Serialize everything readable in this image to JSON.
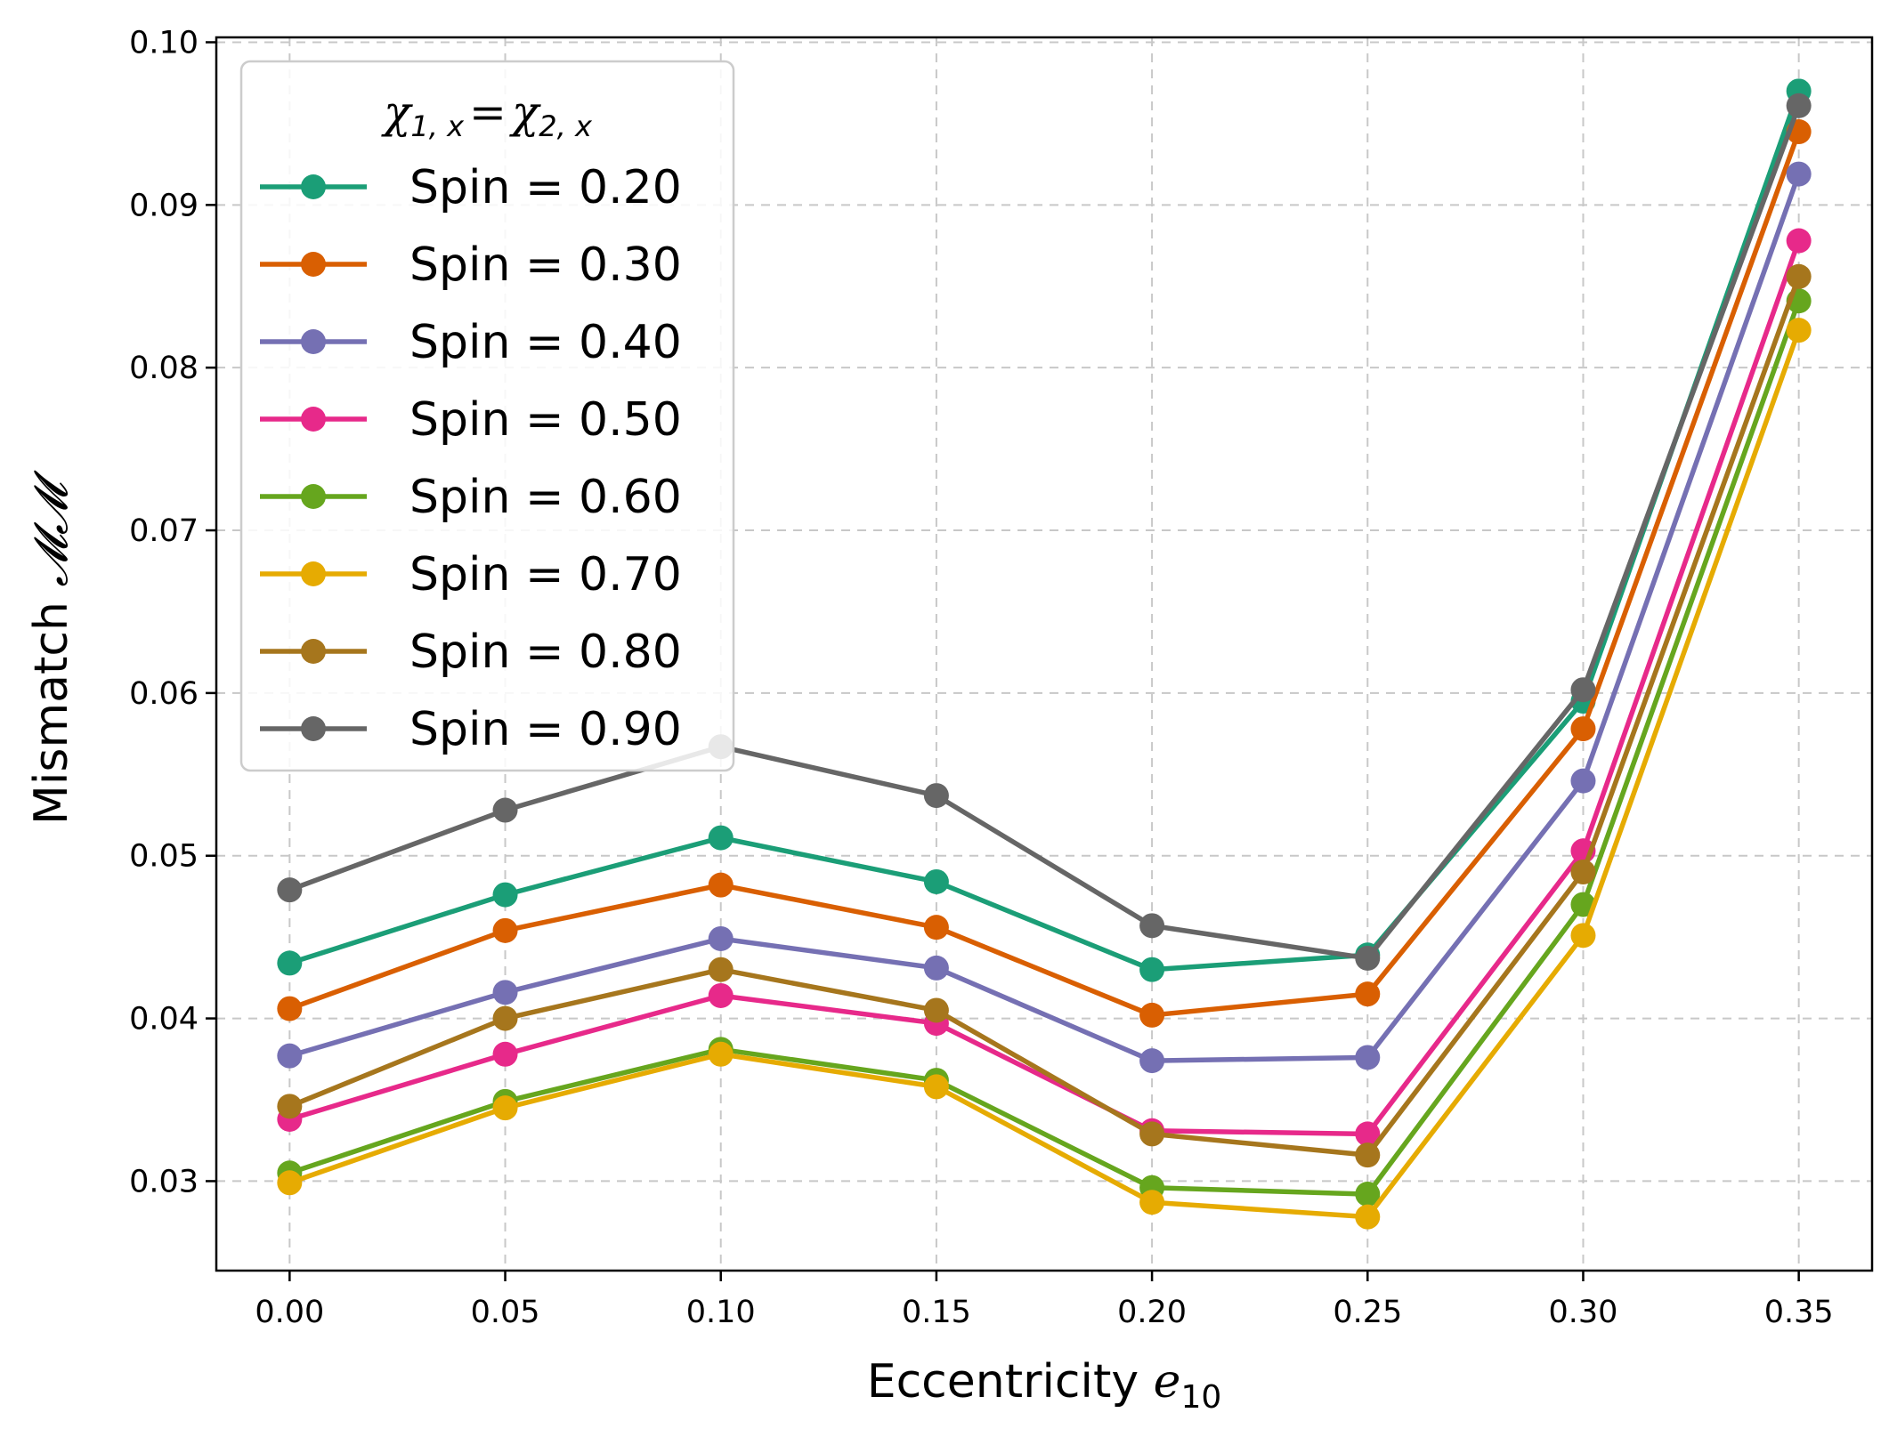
{
  "chart_data": {
    "type": "line",
    "xlabel_text": "Eccentricity",
    "xlabel_math_base": "e",
    "xlabel_math_sub": "10",
    "ylabel_text": "Mismatch",
    "ylabel_math": "𝓜𝓜",
    "legend_title_left_base": "χ",
    "legend_title_left_sub": "1, x",
    "legend_title_eq": "=",
    "legend_title_right_base": "χ",
    "legend_title_right_sub": "2, x",
    "legend_position": "upper-left",
    "grid": true,
    "xlim": [
      -0.017,
      0.367
    ],
    "ylim": [
      0.0245,
      0.1003
    ],
    "x": [
      0.0,
      0.05,
      0.1,
      0.15,
      0.2,
      0.25,
      0.3,
      0.35
    ],
    "x_ticks": [
      0.0,
      0.05,
      0.1,
      0.15,
      0.2,
      0.25,
      0.3,
      0.35
    ],
    "x_tick_labels": [
      "0.00",
      "0.05",
      "0.10",
      "0.15",
      "0.20",
      "0.25",
      "0.30",
      "0.35"
    ],
    "y_ticks": [
      0.03,
      0.04,
      0.05,
      0.06,
      0.07,
      0.08,
      0.09,
      0.1
    ],
    "y_tick_labels": [
      "0.03",
      "0.04",
      "0.05",
      "0.06",
      "0.07",
      "0.08",
      "0.09",
      "0.10"
    ],
    "series": [
      {
        "name": "Spin = 0.20",
        "color": "#1b9e77",
        "values": [
          0.0434,
          0.0476,
          0.0511,
          0.0484,
          0.043,
          0.0439,
          0.0595,
          0.097
        ]
      },
      {
        "name": "Spin = 0.30",
        "color": "#d95f02",
        "values": [
          0.0406,
          0.0454,
          0.0482,
          0.0456,
          0.0402,
          0.0415,
          0.0578,
          0.0945
        ]
      },
      {
        "name": "Spin = 0.40",
        "color": "#7570b3",
        "values": [
          0.0377,
          0.0416,
          0.0449,
          0.0431,
          0.0374,
          0.0376,
          0.0546,
          0.0919
        ]
      },
      {
        "name": "Spin = 0.50",
        "color": "#e7298a",
        "values": [
          0.0338,
          0.0378,
          0.0414,
          0.0397,
          0.0331,
          0.0329,
          0.0503,
          0.0878
        ]
      },
      {
        "name": "Spin = 0.60",
        "color": "#66a61e",
        "values": [
          0.0305,
          0.0349,
          0.0381,
          0.0362,
          0.0296,
          0.0292,
          0.047,
          0.0841
        ]
      },
      {
        "name": "Spin = 0.70",
        "color": "#e6ab02",
        "values": [
          0.0299,
          0.0345,
          0.0378,
          0.0358,
          0.0287,
          0.0278,
          0.0451,
          0.0823
        ]
      },
      {
        "name": "Spin = 0.80",
        "color": "#a6761d",
        "values": [
          0.0346,
          0.04,
          0.043,
          0.0405,
          0.0329,
          0.0316,
          0.049,
          0.0856
        ]
      },
      {
        "name": "Spin = 0.90",
        "color": "#666666",
        "values": [
          0.0479,
          0.0528,
          0.0567,
          0.0537,
          0.0457,
          0.0437,
          0.0602,
          0.0961
        ]
      }
    ]
  }
}
